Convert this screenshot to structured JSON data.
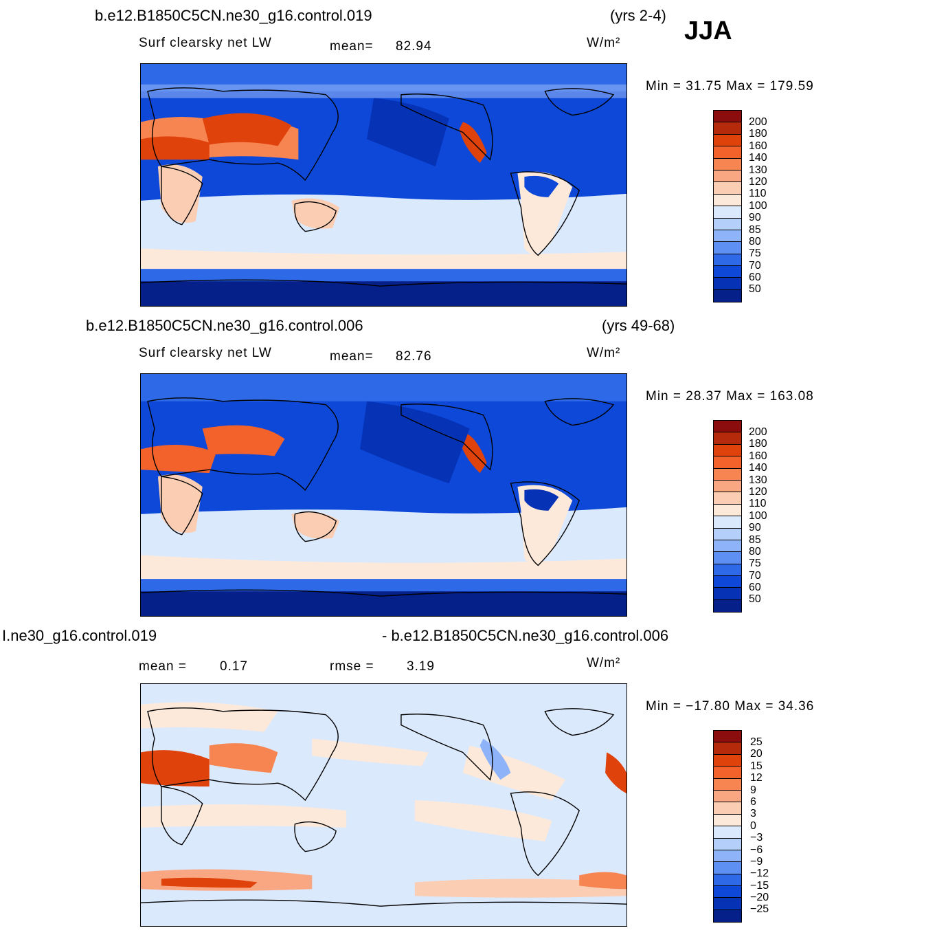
{
  "season": "JJA",
  "units": "W/m²",
  "panels": [
    {
      "case": "b.e12.B1850C5CN.ne30_g16.control.019",
      "years": "(yrs 2-4)",
      "variable": "Surf  clearsky  net  LW",
      "stat1_label": "mean=",
      "stat1_value": "82.94",
      "minmax": "Min  =   31.75  Max  =  179.59",
      "levels": [
        "200",
        "180",
        "160",
        "140",
        "130",
        "120",
        "110",
        "100",
        "90",
        "85",
        "80",
        "75",
        "70",
        "60",
        "50"
      ],
      "colors": [
        "#8b0d0d",
        "#b52a0a",
        "#e0420c",
        "#f2622a",
        "#f78552",
        "#f9a783",
        "#fbcdb3",
        "#fde9da",
        "#dbe9fd",
        "#b5cffb",
        "#8fb3f8",
        "#5e8ff2",
        "#2e6ae8",
        "#0d48d8",
        "#0632b5",
        "#06208a"
      ]
    },
    {
      "case": "b.e12.B1850C5CN.ne30_g16.control.006",
      "years": "(yrs 49-68)",
      "variable": "Surf  clearsky  net  LW",
      "stat1_label": "mean=",
      "stat1_value": "82.76",
      "minmax": "Min  =   28.37  Max  =  163.08",
      "levels": [
        "200",
        "180",
        "160",
        "140",
        "130",
        "120",
        "110",
        "100",
        "90",
        "85",
        "80",
        "75",
        "70",
        "60",
        "50"
      ],
      "colors": [
        "#8b0d0d",
        "#b52a0a",
        "#e0420c",
        "#f2622a",
        "#f78552",
        "#f9a783",
        "#fbcdb3",
        "#fde9da",
        "#dbe9fd",
        "#b5cffb",
        "#8fb3f8",
        "#5e8ff2",
        "#2e6ae8",
        "#0d48d8",
        "#0632b5",
        "#06208a"
      ]
    },
    {
      "case_left": "I.ne30_g16.control.019",
      "case_right": "- b.e12.B1850C5CN.ne30_g16.control.006",
      "stat1_label": "mean  =",
      "stat1_value": "0.17",
      "stat2_label": "rmse  =",
      "stat2_value": "3.19",
      "minmax": "Min  = −17.80  Max  =    34.36",
      "levels": [
        "25",
        "20",
        "15",
        "12",
        "9",
        "6",
        "3",
        "0",
        "−3",
        "−6",
        "−9",
        "−12",
        "−15",
        "−20",
        "−25"
      ],
      "colors": [
        "#8b0d0d",
        "#b52a0a",
        "#e0420c",
        "#f2622a",
        "#f78552",
        "#f9a783",
        "#fbcdb3",
        "#fde9da",
        "#dbe9fd",
        "#b5cffb",
        "#8fb3f8",
        "#5e8ff2",
        "#2e6ae8",
        "#0d48d8",
        "#0632b5",
        "#06208a"
      ]
    }
  ]
}
